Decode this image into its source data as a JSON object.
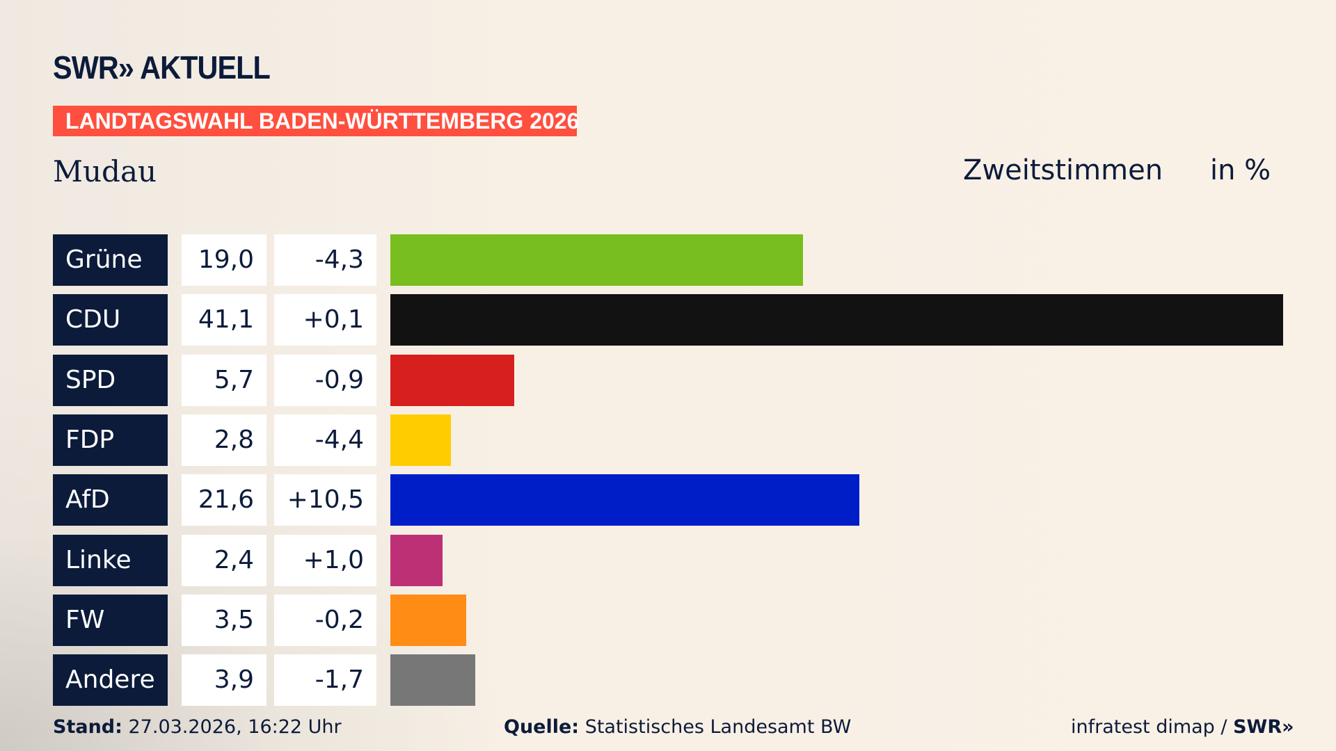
{
  "brand": {
    "logo": "SWR» AKTUELL"
  },
  "banner": "LANDTAGSWAHL BADEN-WÜRTTEMBERG 2026",
  "region": "Mudau",
  "mode": "Zweitstimmen",
  "unit": "in %",
  "chart_data": {
    "type": "bar",
    "orientation": "horizontal",
    "categories": [
      "Grüne",
      "CDU",
      "SPD",
      "FDP",
      "AfD",
      "Linke",
      "FW",
      "Andere"
    ],
    "values": [
      19.0,
      41.1,
      5.7,
      2.8,
      21.6,
      2.4,
      3.5,
      3.9
    ],
    "value_labels": [
      "19,0",
      "41,1",
      "5,7",
      "2,8",
      "21,6",
      "2,4",
      "3,5",
      "3,9"
    ],
    "diff_labels": [
      "-4,3",
      "+0,1",
      "-0,9",
      "-4,4",
      "+10,5",
      "+1,0",
      "-0,2",
      "-1,7"
    ],
    "colors": [
      "#78be1e",
      "#121212",
      "#d71f1d",
      "#ffcc00",
      "#001ec8",
      "#be3075",
      "#ff8c14",
      "#777777"
    ],
    "xlim": [
      0,
      41.1
    ]
  },
  "footer": {
    "stand_label": "Stand:",
    "stand_value": " 27.03.2026, 16:22 Uhr",
    "quelle_label": "Quelle:",
    "quelle_value": " Statistisches Landesamt BW",
    "credit": "infratest dimap / ",
    "credit_logo": "SWR»"
  }
}
